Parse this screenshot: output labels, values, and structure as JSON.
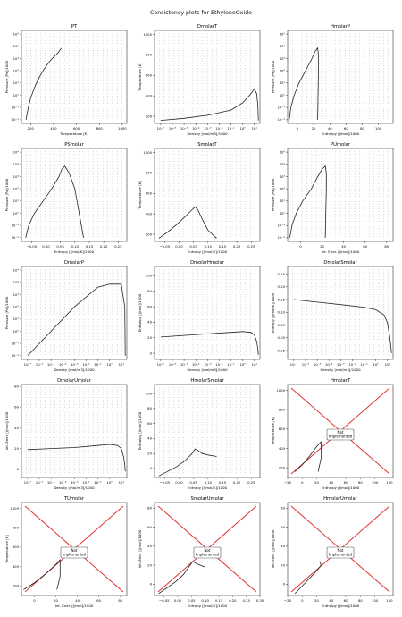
{
  "suptitle": "Consistency plots for EthyleneOxide",
  "colors": {
    "axes_edge": "#333333",
    "grid_dots": "#666666",
    "curve": "#222222",
    "boundary": "#e03030",
    "not_impl_box": "#555555"
  },
  "icons": {
    "not_implemented_box": "boxed-text"
  },
  "chart_data": [
    {
      "type": "scatter",
      "title": "PT",
      "xlabel": "Temperature [K]",
      "ylabel": "Pressure [Pa]/1000",
      "xscale": "linear",
      "yscale": "log",
      "xlim": [
        120,
        1040
      ],
      "ylim": [
        0.005,
        200000
      ],
      "xticks": [
        200,
        400,
        600,
        800,
        1000
      ],
      "xticklabels": [
        "200",
        "400",
        "600",
        "800",
        "1000"
      ],
      "yticks": [
        0.01,
        0.1,
        1,
        10,
        100,
        1000,
        10000,
        100000
      ],
      "yticklabels": [
        "10⁻²",
        "10⁻¹",
        "10⁰",
        "10¹",
        "10²",
        "10³",
        "10⁴",
        "10⁵"
      ],
      "grid": "dotted state-point grid",
      "saturation_curve": {
        "x": [
          160,
          180,
          200,
          240,
          280,
          320,
          360,
          400,
          440,
          469
        ],
        "y": [
          0.01,
          0.1,
          0.6,
          6,
          35,
          150,
          500,
          1300,
          3000,
          7200
        ]
      },
      "boundary": "vertical red line at T ≈ 1000 K"
    },
    {
      "type": "scatter",
      "title": "DmolarT",
      "xlabel": "Density [mol/m3]/1000",
      "ylabel": "Temperature [K]",
      "xscale": "log",
      "yscale": "linear",
      "xlim": [
        3e-08,
        30
      ],
      "ylim": [
        130,
        1040
      ],
      "xticks": [
        1e-07,
        1e-06,
        1e-05,
        0.0001,
        0.001,
        0.01,
        0.1,
        1,
        10
      ],
      "xticklabels": [
        "10⁻⁷",
        "10⁻⁶",
        "10⁻⁵",
        "10⁻⁴",
        "10⁻³",
        "10⁻²",
        "10⁻¹",
        "10⁰",
        "10¹"
      ],
      "yticks": [
        200,
        400,
        600,
        800,
        1000
      ],
      "yticklabels": [
        "200",
        "400",
        "600",
        "800",
        "1000"
      ],
      "grid": "dotted state-point grid",
      "saturation_curve": {
        "x": [
          1e-07,
          1e-05,
          0.001,
          0.1,
          1,
          5,
          10,
          16,
          20,
          22
        ],
        "y": [
          160,
          180,
          210,
          260,
          330,
          420,
          469,
          420,
          300,
          160
        ]
      },
      "boundary": "horizontal red line at T ≈ 1000 K"
    },
    {
      "type": "scatter",
      "title": "HmolarP",
      "xlabel": "Enthalpy [J/mol]/1000",
      "ylabel": "Pressure [Pa]/1000",
      "xscale": "linear",
      "yscale": "log",
      "xlim": [
        -12,
        118
      ],
      "ylim": [
        0.005,
        200000
      ],
      "xticks": [
        0,
        20,
        40,
        60,
        80,
        100
      ],
      "xticklabels": [
        "0",
        "20",
        "40",
        "60",
        "80",
        "100"
      ],
      "yticks": [
        0.01,
        0.1,
        1,
        10,
        100,
        1000,
        10000,
        100000
      ],
      "yticklabels": [
        "10⁻²",
        "10⁻¹",
        "10⁰",
        "10¹",
        "10²",
        "10³",
        "10⁴",
        "10⁵"
      ],
      "grid": "dotted state-point grid",
      "saturation_dome": {
        "x": [
          -10,
          -8,
          -4,
          2,
          10,
          18,
          22,
          25,
          26,
          26,
          25
        ],
        "y": [
          0.01,
          0.1,
          1,
          10,
          100,
          1000,
          4000,
          7200,
          2000,
          100,
          0.01
        ]
      },
      "boundary": "red curve near H ≈ 90–110 kJ/mol"
    },
    {
      "type": "scatter",
      "title": "PSmolar",
      "xlabel": "Entropy [J/mol/K]/1000",
      "ylabel": "Pressure [Pa]/1000",
      "xscale": "linear",
      "yscale": "log",
      "xlim": [
        -0.085,
        0.28
      ],
      "ylim": [
        0.005,
        200000
      ],
      "xticks": [
        -0.05,
        0.0,
        0.05,
        0.1,
        0.15,
        0.2,
        0.25
      ],
      "xticklabels": [
        "−0.05",
        "0.00",
        "0.05",
        "0.10",
        "0.15",
        "0.20",
        "0.25"
      ],
      "yticks": [
        0.01,
        0.1,
        1,
        10,
        100,
        1000,
        10000,
        100000
      ],
      "yticklabels": [
        "10⁻²",
        "10⁻¹",
        "10⁰",
        "10¹",
        "10²",
        "10³",
        "10⁴",
        "10⁵"
      ],
      "grid": "dotted state-point grid",
      "saturation_dome": {
        "x": [
          -0.07,
          -0.06,
          -0.04,
          -0.01,
          0.02,
          0.045,
          0.055,
          0.065,
          0.08,
          0.1,
          0.13
        ],
        "y": [
          0.01,
          0.1,
          1,
          10,
          100,
          1000,
          4000,
          7200,
          2000,
          100,
          0.01
        ]
      },
      "boundary": "red line at the high-entropy edge"
    },
    {
      "type": "scatter",
      "title": "SmolarT",
      "xlabel": "Entropy [J/mol/K]/1000",
      "ylabel": "Temperature [K]",
      "xscale": "linear",
      "yscale": "linear",
      "xlim": [
        -0.085,
        0.28
      ],
      "ylim": [
        130,
        1040
      ],
      "xticks": [
        -0.05,
        0.0,
        0.05,
        0.1,
        0.15,
        0.2,
        0.25
      ],
      "xticklabels": [
        "−0.05",
        "0.00",
        "0.05",
        "0.10",
        "0.15",
        "0.20",
        "0.25"
      ],
      "yticks": [
        200,
        400,
        600,
        800,
        1000
      ],
      "yticklabels": [
        "200",
        "400",
        "600",
        "800",
        "1000"
      ],
      "grid": "dotted state-point grid",
      "saturation_dome": {
        "x": [
          -0.07,
          -0.04,
          -0.01,
          0.02,
          0.045,
          0.055,
          0.065,
          0.08,
          0.1,
          0.13
        ],
        "y": [
          160,
          220,
          290,
          370,
          440,
          469,
          440,
          350,
          240,
          160
        ]
      },
      "boundary": "horizontal red line at T ≈ 1000 K"
    },
    {
      "type": "scatter",
      "title": "PUmolar",
      "xlabel": "Int. Ener. [J/mol]/1000",
      "ylabel": "Pressure [Pa]/1000",
      "xscale": "linear",
      "yscale": "log",
      "xlim": [
        -12,
        86
      ],
      "ylim": [
        0.005,
        200000
      ],
      "xticks": [
        0,
        20,
        40,
        60,
        80
      ],
      "xticklabels": [
        "0",
        "20",
        "40",
        "60",
        "80"
      ],
      "yticks": [
        0.01,
        0.1,
        1,
        10,
        100,
        1000,
        10000,
        100000
      ],
      "yticklabels": [
        "10⁻²",
        "10⁻¹",
        "10⁰",
        "10¹",
        "10²",
        "10³",
        "10⁴",
        "10⁵"
      ],
      "grid": "dotted state-point grid",
      "saturation_dome": {
        "x": [
          -10,
          -8,
          -4,
          2,
          10,
          16,
          20,
          23,
          24,
          24,
          23
        ],
        "y": [
          0.01,
          0.1,
          1,
          10,
          100,
          1000,
          4000,
          7200,
          2000,
          100,
          0.01
        ]
      },
      "boundary": "red curve near U ≈ 65–80 kJ/mol"
    },
    {
      "type": "scatter",
      "title": "DmolarP",
      "xlabel": "Density [mol/m3]/1000",
      "ylabel": "Pressure [Pa]/1000",
      "xscale": "log",
      "yscale": "log",
      "xlim": [
        3e-08,
        30
      ],
      "ylim": [
        0.005,
        200000
      ],
      "xticks": [
        1e-07,
        1e-06,
        1e-05,
        0.0001,
        0.001,
        0.01,
        0.1,
        1,
        10
      ],
      "xticklabels": [
        "10⁻⁷",
        "10⁻⁶",
        "10⁻⁵",
        "10⁻⁴",
        "10⁻³",
        "10⁻²",
        "10⁻¹",
        "10⁰",
        "10¹"
      ],
      "yticks": [
        0.01,
        0.1,
        1,
        10,
        100,
        1000,
        10000,
        100000
      ],
      "yticklabels": [
        "10⁻²",
        "10⁻¹",
        "10⁰",
        "10¹",
        "10²",
        "10³",
        "10⁴",
        "10⁵"
      ],
      "grid": "dotted diagonal isotherm grid",
      "saturation_curve": {
        "x": [
          1e-07,
          1e-05,
          0.001,
          0.1,
          1,
          5,
          10,
          20,
          22
        ],
        "y": [
          0.01,
          1,
          100,
          4000,
          7200,
          7200,
          7200,
          100,
          0.01
        ]
      },
      "boundary": "red diagonal at the low-pressure edge"
    },
    {
      "type": "scatter",
      "title": "DmolarHmolar",
      "xlabel": "Density [mol/m3]/1000",
      "ylabel": "Enthalpy [J/mol]/1000",
      "xscale": "log",
      "yscale": "linear",
      "xlim": [
        3e-08,
        30
      ],
      "ylim": [
        -8,
        112
      ],
      "xticks": [
        1e-07,
        1e-06,
        1e-05,
        0.0001,
        0.001,
        0.01,
        0.1,
        1,
        10
      ],
      "xticklabels": [
        "10⁻⁷",
        "10⁻⁶",
        "10⁻⁵",
        "10⁻⁴",
        "10⁻³",
        "10⁻²",
        "10⁻¹",
        "10⁰",
        "10¹"
      ],
      "yticks": [
        0,
        20,
        40,
        60,
        80,
        100
      ],
      "yticklabels": [
        "0",
        "20",
        "40",
        "60",
        "80",
        "100"
      ],
      "grid": "dotted state-point grid",
      "saturation_curve": {
        "x": [
          1e-07,
          1e-05,
          0.001,
          0.1,
          1,
          5,
          10,
          16,
          20,
          22
        ],
        "y": [
          21,
          23,
          25,
          27,
          28,
          27,
          24,
          15,
          5,
          -2
        ]
      },
      "boundary": "horizontal red line at H ≈ 88 kJ/mol"
    },
    {
      "type": "scatter",
      "title": "DmolarSmolar",
      "xlabel": "Density [mol/m3]/1000",
      "ylabel": "Entropy [J/mol/K]/1000",
      "xscale": "log",
      "yscale": "linear",
      "xlim": [
        3e-08,
        30
      ],
      "ylim": [
        -0.085,
        0.28
      ],
      "xticks": [
        1e-07,
        1e-06,
        1e-05,
        0.0001,
        0.001,
        0.01,
        0.1,
        1,
        10
      ],
      "xticklabels": [
        "10⁻⁷",
        "10⁻⁶",
        "10⁻⁵",
        "10⁻⁴",
        "10⁻³",
        "10⁻²",
        "10⁻¹",
        "10⁰",
        "10¹"
      ],
      "yticks": [
        -0.05,
        0.0,
        0.05,
        0.1,
        0.15,
        0.2,
        0.25
      ],
      "yticklabels": [
        "−0.05",
        "0.00",
        "0.05",
        "0.10",
        "0.15",
        "0.20",
        "0.25"
      ],
      "grid": "dotted state-point grid",
      "saturation_curve": {
        "x": [
          1e-07,
          1e-05,
          0.001,
          0.1,
          1,
          5,
          10,
          16,
          20,
          22
        ],
        "y": [
          0.15,
          0.14,
          0.13,
          0.12,
          0.11,
          0.09,
          0.06,
          0.0,
          -0.04,
          -0.06
        ]
      },
      "boundary": "red diagonal at the upper edge"
    },
    {
      "type": "scatter",
      "title": "DmolarUmolar",
      "xlabel": "Density [mol/m3]/1000",
      "ylabel": "Int. Ener. [J/mol]/1000",
      "xscale": "log",
      "yscale": "linear",
      "xlim": [
        3e-08,
        30
      ],
      "ylim": [
        -8,
        82
      ],
      "xticks": [
        1e-07,
        1e-06,
        1e-05,
        0.0001,
        0.001,
        0.01,
        0.1,
        1,
        10
      ],
      "xticklabels": [
        "10⁻⁷",
        "10⁻⁶",
        "10⁻⁵",
        "10⁻⁴",
        "10⁻³",
        "10⁻²",
        "10⁻¹",
        "10⁰",
        "10¹"
      ],
      "yticks": [
        0,
        20,
        40,
        60,
        80
      ],
      "yticklabels": [
        "0",
        "20",
        "40",
        "60",
        "80"
      ],
      "grid": "dotted state-point grid",
      "saturation_curve": {
        "x": [
          1e-07,
          1e-05,
          0.001,
          0.1,
          1,
          5,
          10,
          16,
          20,
          22
        ],
        "y": [
          19,
          20,
          21,
          23,
          24,
          23,
          20,
          12,
          4,
          -2
        ]
      },
      "boundary": "horizontal red line at U ≈ 80 kJ/mol"
    },
    {
      "type": "scatter",
      "title": "HmolarSmolar",
      "xlabel": "Entropy [J/mol/K]/1000",
      "ylabel": "Enthalpy [J/mol]/1000",
      "xscale": "linear",
      "yscale": "linear",
      "xlim": [
        -0.085,
        0.28
      ],
      "ylim": [
        -12,
        112
      ],
      "xticks": [
        -0.05,
        0.0,
        0.05,
        0.1,
        0.15,
        0.2,
        0.25
      ],
      "xticklabels": [
        "−0.05",
        "0.00",
        "0.05",
        "0.10",
        "0.15",
        "0.20",
        "0.25"
      ],
      "yticks": [
        0,
        20,
        40,
        60,
        80,
        100
      ],
      "yticklabels": [
        "0",
        "20",
        "40",
        "60",
        "80",
        "100"
      ],
      "grid": "dotted state-point grid",
      "saturation_curve": {
        "x": [
          -0.07,
          -0.04,
          -0.01,
          0.02,
          0.045,
          0.055,
          0.065,
          0.08,
          0.1,
          0.13
        ],
        "y": [
          -10,
          -4,
          2,
          10,
          20,
          26,
          24,
          20,
          18,
          16
        ]
      },
      "boundary": "red curve peaking near S ≈ 0.1, H ≈ 108"
    },
    {
      "type": "line",
      "title": "HmolarT",
      "xlabel": "Enthalpy [J/mol]/1000",
      "ylabel": "Temperature [K]",
      "xscale": "linear",
      "yscale": "linear",
      "xlim": [
        -20,
        125
      ],
      "ylim": [
        100,
        1060
      ],
      "xticks": [
        -20,
        0,
        20,
        40,
        60,
        80,
        100,
        120
      ],
      "xticklabels": [
        "−20",
        "0",
        "20",
        "40",
        "60",
        "80",
        "100",
        "120"
      ],
      "yticks": [
        200,
        400,
        600,
        800,
        1000
      ],
      "yticklabels": [
        "200",
        "400",
        "600",
        "800",
        "1000"
      ],
      "not_implemented_label": "Not\nImplemented",
      "saturation_curve": {
        "x": [
          -10,
          0,
          10,
          20,
          26,
          26,
          22
        ],
        "y": [
          160,
          230,
          320,
          420,
          469,
          300,
          160
        ]
      }
    },
    {
      "type": "line",
      "title": "TUmolar",
      "xlabel": "Int. Ener. [J/mol]/1000",
      "ylabel": "Temperature [K]",
      "xscale": "linear",
      "yscale": "linear",
      "xlim": [
        -12,
        86
      ],
      "ylim": [
        100,
        1060
      ],
      "xticks": [
        0,
        20,
        40,
        60,
        80
      ],
      "xticklabels": [
        "0",
        "20",
        "40",
        "60",
        "80"
      ],
      "yticks": [
        200,
        400,
        600,
        800,
        1000
      ],
      "yticklabels": [
        "200",
        "400",
        "600",
        "800",
        "1000"
      ],
      "not_implemented_label": "Not\nImplemented",
      "saturation_curve": {
        "x": [
          -10,
          0,
          10,
          20,
          24,
          24,
          21
        ],
        "y": [
          160,
          230,
          320,
          420,
          469,
          300,
          160
        ]
      }
    },
    {
      "type": "line",
      "title": "SmolarUmolar",
      "xlabel": "Entropy [J/mol/K]/1000",
      "ylabel": "Int. Ener. [J/mol]/1000",
      "xscale": "linear",
      "yscale": "linear",
      "xlim": [
        -0.085,
        0.3
      ],
      "ylim": [
        -12,
        86
      ],
      "xticks": [
        -0.05,
        0.0,
        0.05,
        0.1,
        0.15,
        0.2,
        0.25,
        0.3
      ],
      "xticklabels": [
        "−0.05",
        "0.00",
        "0.05",
        "0.10",
        "0.15",
        "0.20",
        "0.25",
        "0.30"
      ],
      "yticks": [
        0,
        20,
        40,
        60,
        80
      ],
      "yticklabels": [
        "0",
        "20",
        "40",
        "60",
        "80"
      ],
      "not_implemented_label": "Not\nImplemented",
      "saturation_curve": {
        "x": [
          -0.07,
          -0.04,
          -0.01,
          0.02,
          0.045,
          0.055,
          0.065,
          0.1
        ],
        "y": [
          -10,
          -4,
          2,
          10,
          20,
          24,
          22,
          18
        ]
      }
    },
    {
      "type": "line",
      "title": "HmolarUmolar",
      "xlabel": "Enthalpy [J/mol]/1000",
      "ylabel": "Int. Ener. [J/mol]/1000",
      "xscale": "linear",
      "yscale": "linear",
      "xlim": [
        -20,
        125
      ],
      "ylim": [
        -12,
        86
      ],
      "xticks": [
        -20,
        0,
        20,
        40,
        60,
        80,
        100,
        120
      ],
      "xticklabels": [
        "−20",
        "0",
        "20",
        "40",
        "60",
        "80",
        "100",
        "120"
      ],
      "yticks": [
        0,
        20,
        40,
        60,
        80
      ],
      "yticklabels": [
        "0",
        "20",
        "40",
        "60",
        "80"
      ],
      "not_implemented_label": "Not\nImplemented",
      "saturation_curve": {
        "x": [
          -10,
          0,
          10,
          20,
          26,
          24
        ],
        "y": [
          -10,
          -2,
          6,
          14,
          20,
          24
        ]
      }
    }
  ]
}
